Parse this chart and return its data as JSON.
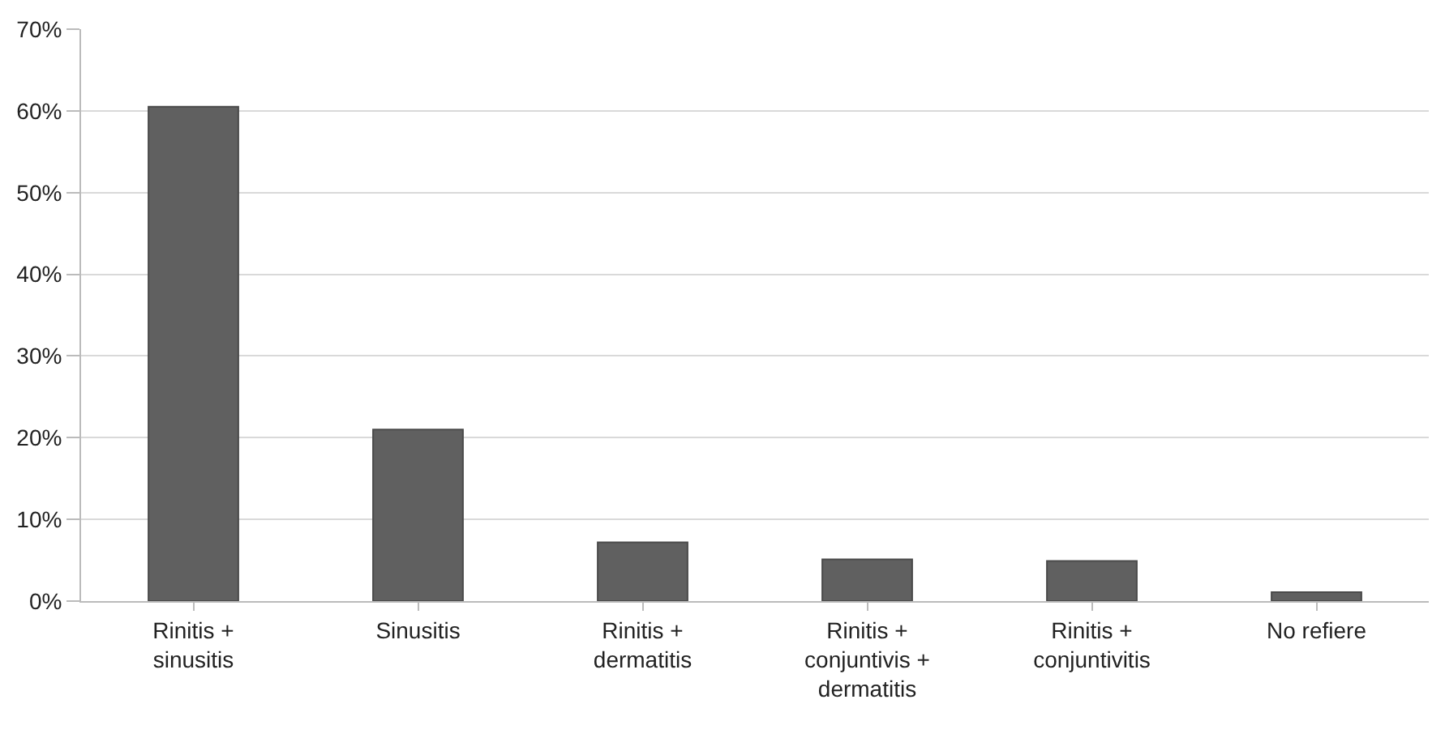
{
  "chart_data": {
    "type": "bar",
    "categories": [
      "Rinitis + sinusitis",
      "Sinusitis",
      "Rinitis + dermatitis",
      "Rinitis + conjuntivis + dermatitis",
      "Rinitis + conjuntivitis",
      "No refiere"
    ],
    "values": [
      60.5,
      21.0,
      7.2,
      5.1,
      4.9,
      1.1
    ],
    "color": "#606060",
    "ylim": [
      0,
      70
    ],
    "yticks": [
      {
        "value": 0,
        "label": "0%"
      },
      {
        "value": 10,
        "label": "10%"
      },
      {
        "value": 20,
        "label": "20%"
      },
      {
        "value": 30,
        "label": "30%"
      },
      {
        "value": 40,
        "label": "40%"
      },
      {
        "value": 50,
        "label": "50%"
      },
      {
        "value": 60,
        "label": "60%"
      },
      {
        "value": 70,
        "label": "70%"
      }
    ],
    "grid": "y"
  }
}
